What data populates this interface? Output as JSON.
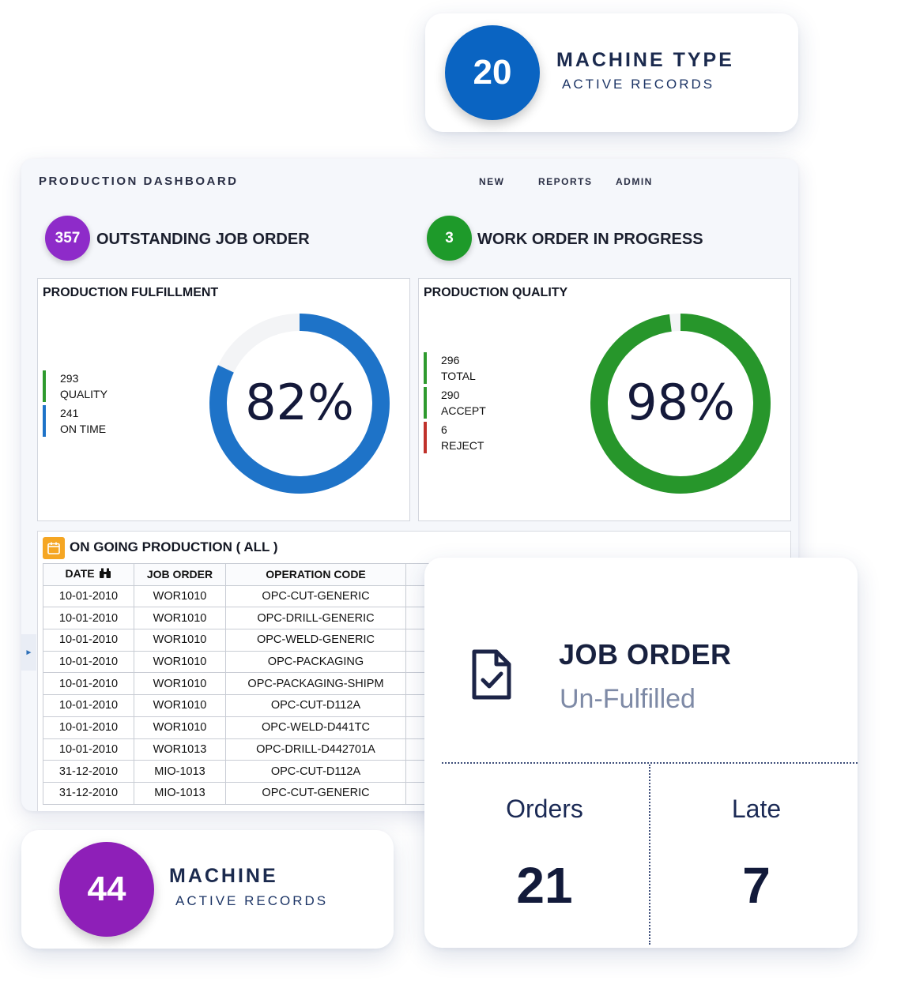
{
  "machine_type_card": {
    "count": "20",
    "title": "MACHINE TYPE",
    "subtitle": "ACTIVE RECORDS",
    "color": "#0a64c2"
  },
  "dashboard": {
    "title": "PRODUCTION DASHBOARD",
    "nav": {
      "new": "NEW",
      "reports": "REPORTS",
      "admin": "ADMIN"
    },
    "kpis": {
      "outstanding": {
        "count": "357",
        "label": "OUTSTANDING JOB ORDER",
        "color": "#8e2bc9"
      },
      "in_progress": {
        "count": "3",
        "label": "WORK ORDER IN PROGRESS",
        "color": "#1e9a2a"
      }
    },
    "fulfillment": {
      "title": "PRODUCTION FULFILLMENT",
      "percent_label": "82%",
      "percent": 82,
      "color": "#1e73c8",
      "legend": [
        {
          "value": "293",
          "label": "QUALITY",
          "color": "#2e9a2e"
        },
        {
          "value": "241",
          "label": "ON TIME",
          "color": "#1e73c8"
        }
      ]
    },
    "quality": {
      "title": "PRODUCTION QUALITY",
      "percent_label": "98%",
      "percent": 98,
      "color": "#27962b",
      "legend": [
        {
          "value": "296",
          "label": "TOTAL",
          "color": "#2e9a2e"
        },
        {
          "value": "290",
          "label": "ACCEPT",
          "color": "#2e9a2e"
        },
        {
          "value": "6",
          "label": "REJECT",
          "color": "#c0312b"
        }
      ]
    },
    "ongoing": {
      "title": "ON GOING PRODUCTION ( ALL )",
      "columns": [
        "DATE",
        "JOB ORDER",
        "OPERATION CODE"
      ],
      "rows": [
        [
          "10-01-2010",
          "WOR1010",
          "OPC-CUT-GENERIC"
        ],
        [
          "10-01-2010",
          "WOR1010",
          "OPC-DRILL-GENERIC"
        ],
        [
          "10-01-2010",
          "WOR1010",
          "OPC-WELD-GENERIC"
        ],
        [
          "10-01-2010",
          "WOR1010",
          "OPC-PACKAGING"
        ],
        [
          "10-01-2010",
          "WOR1010",
          "OPC-PACKAGING-SHIPM"
        ],
        [
          "10-01-2010",
          "WOR1010",
          "OPC-CUT-D112A"
        ],
        [
          "10-01-2010",
          "WOR1010",
          "OPC-WELD-D441TC"
        ],
        [
          "10-01-2010",
          "WOR1013",
          "OPC-DRILL-D442701A"
        ],
        [
          "31-12-2010",
          "MIO-1013",
          "OPC-CUT-D112A"
        ],
        [
          "31-12-2010",
          "MIO-1013",
          "OPC-CUT-GENERIC"
        ]
      ]
    }
  },
  "job_order_card": {
    "title": "JOB ORDER",
    "subtitle": "Un-Fulfilled",
    "orders_label": "Orders",
    "orders_value": "21",
    "late_label": "Late",
    "late_value": "7"
  },
  "machine_card": {
    "count": "44",
    "title": "MACHINE",
    "subtitle": "ACTIVE RECORDS",
    "color": "#8e1fb8"
  }
}
